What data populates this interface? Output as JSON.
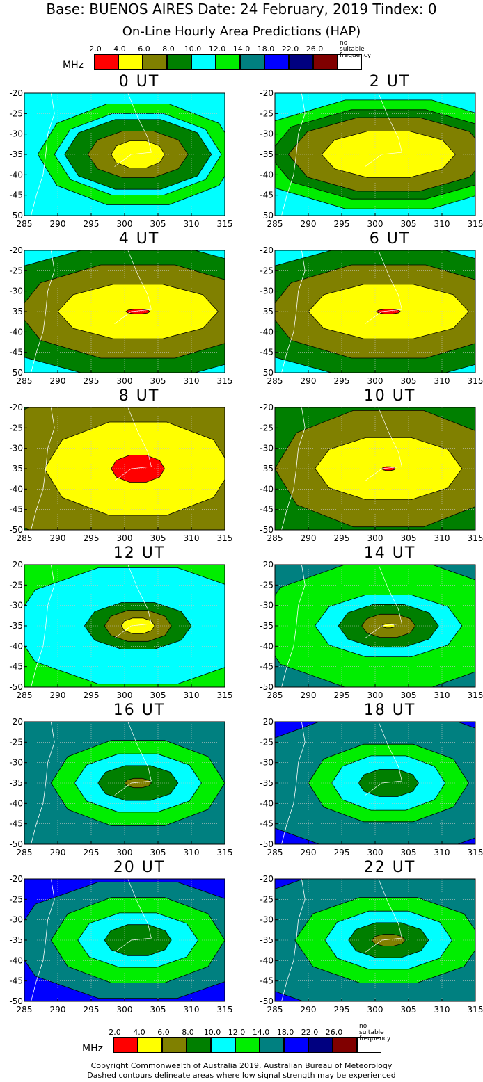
{
  "header": {
    "line1": "Base: BUENOS AIRES Date: 24 February, 2019 Tindex: 0",
    "line2": "On-Line Hourly Area Predictions (HAP)"
  },
  "legend": {
    "unit": "MHz",
    "labels": [
      "2.0",
      "4.0",
      "6.0",
      "8.0",
      "10.0",
      "12.0",
      "14.0",
      "18.0",
      "22.0",
      "26.0"
    ],
    "no_suitable": "no suitable",
    "frequency": "frequency",
    "colors": [
      "#ff0000",
      "#ffff00",
      "#808000",
      "#007f00",
      "#00ffff",
      "#00ee00",
      "#008080",
      "#0000ff",
      "#000080",
      "#800000",
      "#ffffff"
    ]
  },
  "chart_data": {
    "type": "heatmap",
    "xlim": [
      285,
      315
    ],
    "ylim": [
      -50,
      -20
    ],
    "x_ticks": [
      "285",
      "290",
      "295",
      "300",
      "305",
      "310",
      "315"
    ],
    "y_ticks": [
      "-20",
      "-25",
      "-30",
      "-35",
      "-40",
      "-45",
      "-50"
    ],
    "grid": true,
    "center": [
      302,
      -35
    ],
    "panels": [
      {
        "label": "0 UT",
        "background": "#00ffff",
        "contours": [
          {
            "color": "#00ee00",
            "rx": 15,
            "ry": 13
          },
          {
            "color": "#00ffff",
            "rx": 12.5,
            "ry": 10.5
          },
          {
            "color": "#007f00",
            "rx": 11,
            "ry": 9
          },
          {
            "color": "#808000",
            "rx": 7.5,
            "ry": 6
          },
          {
            "color": "#ffff00",
            "rx": 4,
            "ry": 3.5
          }
        ]
      },
      {
        "label": "2 UT",
        "background": "#00ffff",
        "contours": [
          {
            "color": "#00ee00",
            "rx": 21,
            "ry": 14
          },
          {
            "color": "#007f00",
            "rx": 18,
            "ry": 11.5
          },
          {
            "color": "#808000",
            "rx": 15,
            "ry": 9.5
          },
          {
            "color": "#ffff00",
            "rx": 10,
            "ry": 6
          }
        ]
      },
      {
        "label": "4 UT",
        "background": "#00ffff",
        "contours": [
          {
            "color": "#007f00",
            "rx": 26,
            "ry": 16
          },
          {
            "color": "#808000",
            "rx": 18,
            "ry": 12
          },
          {
            "color": "#ffff00",
            "rx": 12,
            "ry": 7
          },
          {
            "color": "#ff0000",
            "rx": 1.8,
            "ry": 0.6
          }
        ]
      },
      {
        "label": "6 UT",
        "background": "#00ffff",
        "contours": [
          {
            "color": "#007f00",
            "rx": 26,
            "ry": 16
          },
          {
            "color": "#808000",
            "rx": 18,
            "ry": 12
          },
          {
            "color": "#ffff00",
            "rx": 12,
            "ry": 7
          },
          {
            "color": "#ff0000",
            "rx": 1.8,
            "ry": 0.6
          }
        ]
      },
      {
        "label": "8 UT",
        "background": "#007f00",
        "contours": [
          {
            "color": "#808000",
            "rx": 24,
            "ry": 22
          },
          {
            "color": "#ffff00",
            "rx": 14,
            "ry": 12
          },
          {
            "color": "#ff0000",
            "rx": 4,
            "ry": 3.5
          }
        ]
      },
      {
        "label": "10 UT",
        "background": "#007f00",
        "contours": [
          {
            "color": "#808000",
            "rx": 17,
            "ry": 15
          },
          {
            "color": "#ffff00",
            "rx": 11,
            "ry": 8
          },
          {
            "color": "#ff0000",
            "rx": 1,
            "ry": 0.5
          }
        ]
      },
      {
        "label": "12 UT",
        "background": "#00ee00",
        "contours": [
          {
            "color": "#00ffff",
            "rx": 19,
            "ry": 15
          },
          {
            "color": "#007f00",
            "rx": 8,
            "ry": 6
          },
          {
            "color": "#808000",
            "rx": 5,
            "ry": 4
          },
          {
            "color": "#ffff00",
            "rx": 2.5,
            "ry": 2
          }
        ]
      },
      {
        "label": "14 UT",
        "background": "#008080",
        "contours": [
          {
            "color": "#00ee00",
            "rx": 20,
            "ry": 16
          },
          {
            "color": "#00ffff",
            "rx": 11,
            "ry": 8
          },
          {
            "color": "#007f00",
            "rx": 7.5,
            "ry": 5.5
          },
          {
            "color": "#808000",
            "rx": 4,
            "ry": 3
          },
          {
            "color": "#ffff00",
            "rx": 1,
            "ry": 0.5
          }
        ]
      },
      {
        "label": "16 UT",
        "background": "#008080",
        "contours": [
          {
            "color": "#00ee00",
            "rx": 13,
            "ry": 11
          },
          {
            "color": "#00ffff",
            "rx": 9.5,
            "ry": 7.5
          },
          {
            "color": "#007f00",
            "rx": 6,
            "ry": 4.5
          },
          {
            "color": "#808000",
            "rx": 2,
            "ry": 1.2
          }
        ]
      },
      {
        "label": "18 UT",
        "background": "#0000ff",
        "contours": [
          {
            "color": "#008080",
            "rx": 22,
            "ry": 18
          },
          {
            "color": "#00ee00",
            "rx": 12,
            "ry": 10
          },
          {
            "color": "#00ffff",
            "rx": 8.5,
            "ry": 7
          },
          {
            "color": "#007f00",
            "rx": 4.5,
            "ry": 3.5
          }
        ]
      },
      {
        "label": "20 UT",
        "background": "#000080",
        "contours": [
          {
            "color": "#0000ff",
            "rx": 28,
            "ry": 22
          },
          {
            "color": "#008080",
            "rx": 19,
            "ry": 15
          },
          {
            "color": "#00ee00",
            "rx": 13,
            "ry": 11
          },
          {
            "color": "#00ffff",
            "rx": 9,
            "ry": 7
          },
          {
            "color": "#007f00",
            "rx": 5,
            "ry": 4
          }
        ]
      },
      {
        "label": "22 UT",
        "background": "#0000ff",
        "contours": [
          {
            "color": "#008080",
            "rx": 24,
            "ry": 19
          },
          {
            "color": "#00ee00",
            "rx": 14,
            "ry": 11
          },
          {
            "color": "#00ffff",
            "rx": 9.5,
            "ry": 7.5
          },
          {
            "color": "#007f00",
            "rx": 6,
            "ry": 4.5
          },
          {
            "color": "#808000",
            "rx": 2.5,
            "ry": 1.5
          }
        ]
      }
    ]
  },
  "footer": {
    "line1": "Copyright Commonwealth of Australia 2019, Australian Bureau of Meteorology",
    "line2": "Dashed contours delineate areas where low signal strength may be experienced"
  }
}
